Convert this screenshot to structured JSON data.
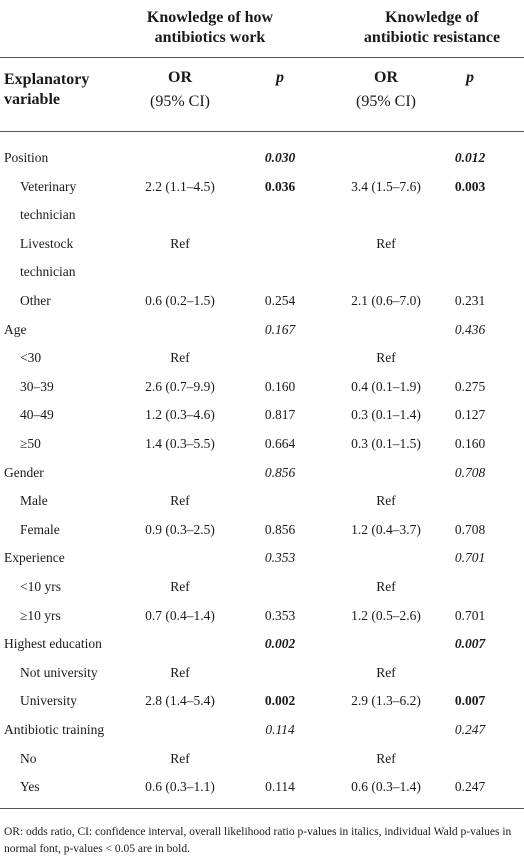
{
  "table": {
    "group_headers": [
      {
        "line1": "Knowledge of how",
        "line2": "antibiotics work"
      },
      {
        "line1": "Knowledge of",
        "line2": "antibiotic resistance"
      }
    ],
    "col_headers": {
      "variable_1": "Explanatory",
      "variable_2": "variable",
      "or_1": "OR",
      "or_2": "(95% CI)",
      "p": "p"
    },
    "rows": [
      {
        "label": "Position",
        "indent": false,
        "or1": "",
        "p1": "0.030",
        "p1_style": "bi",
        "or2": "",
        "p2": "0.012",
        "p2_style": "bi"
      },
      {
        "label": "Veterinary",
        "label2": "technician",
        "indent": true,
        "or1": "2.2 (1.1–4.5)",
        "p1": "0.036",
        "p1_style": "b",
        "or2": "3.4 (1.5–7.6)",
        "p2": "0.003",
        "p2_style": "b"
      },
      {
        "label": "Livestock",
        "label2": "technician",
        "indent": true,
        "or1": "Ref",
        "p1": "",
        "p1_style": "",
        "or2": "Ref",
        "p2": "",
        "p2_style": ""
      },
      {
        "label": "Other",
        "indent": true,
        "or1": "0.6 (0.2–1.5)",
        "p1": "0.254",
        "p1_style": "",
        "or2": "2.1 (0.6–7.0)",
        "p2": "0.231",
        "p2_style": ""
      },
      {
        "label": "Age",
        "indent": false,
        "or1": "",
        "p1": "0.167",
        "p1_style": "i",
        "or2": "",
        "p2": "0.436",
        "p2_style": "i"
      },
      {
        "label": "<30",
        "indent": true,
        "or1": "Ref",
        "p1": "",
        "p1_style": "",
        "or2": "Ref",
        "p2": "",
        "p2_style": ""
      },
      {
        "label": "30–39",
        "indent": true,
        "or1": "2.6 (0.7–9.9)",
        "p1": "0.160",
        "p1_style": "",
        "or2": "0.4 (0.1–1.9)",
        "p2": "0.275",
        "p2_style": ""
      },
      {
        "label": "40–49",
        "indent": true,
        "or1": "1.2 (0.3–4.6)",
        "p1": "0.817",
        "p1_style": "",
        "or2": "0.3 (0.1–1.4)",
        "p2": "0.127",
        "p2_style": ""
      },
      {
        "label": "≥50",
        "indent": true,
        "or1": "1.4 (0.3–5.5)",
        "p1": "0.664",
        "p1_style": "",
        "or2": "0.3 (0.1–1.5)",
        "p2": "0.160",
        "p2_style": ""
      },
      {
        "label": "Gender",
        "indent": false,
        "or1": "",
        "p1": "0.856",
        "p1_style": "i",
        "or2": "",
        "p2": "0.708",
        "p2_style": "i"
      },
      {
        "label": "Male",
        "indent": true,
        "or1": "Ref",
        "p1": "",
        "p1_style": "",
        "or2": "Ref",
        "p2": "",
        "p2_style": ""
      },
      {
        "label": "Female",
        "indent": true,
        "or1": "0.9 (0.3–2.5)",
        "p1": "0.856",
        "p1_style": "",
        "or2": "1.2 (0.4–3.7)",
        "p2": "0.708",
        "p2_style": ""
      },
      {
        "label": "Experience",
        "indent": false,
        "or1": "",
        "p1": "0.353",
        "p1_style": "i",
        "or2": "",
        "p2": "0.701",
        "p2_style": "i"
      },
      {
        "label": "<10 yrs",
        "indent": true,
        "or1": "Ref",
        "p1": "",
        "p1_style": "",
        "or2": "Ref",
        "p2": "",
        "p2_style": ""
      },
      {
        "label": "≥10 yrs",
        "indent": true,
        "or1": "0.7 (0.4–1.4)",
        "p1": "0.353",
        "p1_style": "",
        "or2": "1.2 (0.5–2.6)",
        "p2": "0.701",
        "p2_style": ""
      },
      {
        "label": "Highest education",
        "indent": false,
        "or1": "",
        "p1": "0.002",
        "p1_style": "bi",
        "or2": "",
        "p2": "0.007",
        "p2_style": "bi"
      },
      {
        "label": "Not university",
        "indent": true,
        "or1": "Ref",
        "p1": "",
        "p1_style": "",
        "or2": "Ref",
        "p2": "",
        "p2_style": ""
      },
      {
        "label": "University",
        "indent": true,
        "or1": "2.8 (1.4–5.4)",
        "p1": "0.002",
        "p1_style": "b",
        "or2": "2.9 (1.3–6.2)",
        "p2": "0.007",
        "p2_style": "b"
      },
      {
        "label": "Antibiotic training",
        "indent": false,
        "or1": "",
        "p1": "0.114",
        "p1_style": "i",
        "or2": "",
        "p2": "0.247",
        "p2_style": "i"
      },
      {
        "label": "No",
        "indent": true,
        "or1": "Ref",
        "p1": "",
        "p1_style": "",
        "or2": "Ref",
        "p2": "",
        "p2_style": ""
      },
      {
        "label": "Yes",
        "indent": true,
        "or1": "0.6 (0.3–1.1)",
        "p1": "0.114",
        "p1_style": "",
        "or2": "0.6 (0.3–1.4)",
        "p2": "0.247",
        "p2_style": ""
      }
    ],
    "footnote": "OR: odds ratio, CI: confidence interval, overall likelihood ratio p-values in italics, individual Wald p-values in normal font, p-values < 0.05 are in bold."
  }
}
